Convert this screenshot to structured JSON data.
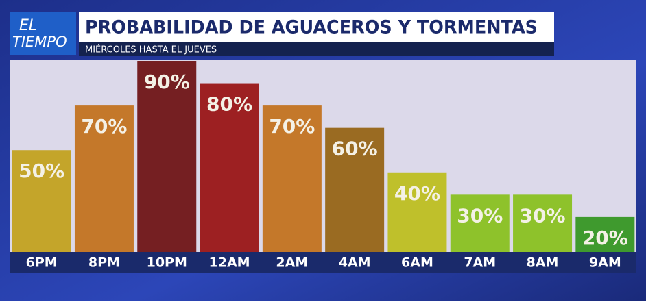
{
  "logo": {
    "line1": "EL",
    "line2": "TIEMPO"
  },
  "chart_data": {
    "type": "bar",
    "title": "PROBABILIDAD DE AGUACEROS Y TORMENTAS",
    "subtitle": "MIÉRCOLES HASTA EL JUEVES",
    "categories": [
      "6PM",
      "8PM",
      "10PM",
      "12AM",
      "2AM",
      "4AM",
      "6AM",
      "7AM",
      "8AM",
      "9AM"
    ],
    "values": [
      50,
      70,
      90,
      80,
      70,
      60,
      40,
      30,
      30,
      20
    ],
    "value_labels": [
      "50%",
      "70%",
      "90%",
      "80%",
      "70%",
      "60%",
      "40%",
      "30%",
      "30%",
      "20%"
    ],
    "colors": [
      "#c4a52a",
      "#c4782a",
      "#751f22",
      "#9d2022",
      "#c4782a",
      "#9a6b22",
      "#bfc02b",
      "#8ec22b",
      "#8ec22b",
      "#3f9a2e"
    ],
    "ylim": [
      0,
      90
    ]
  }
}
